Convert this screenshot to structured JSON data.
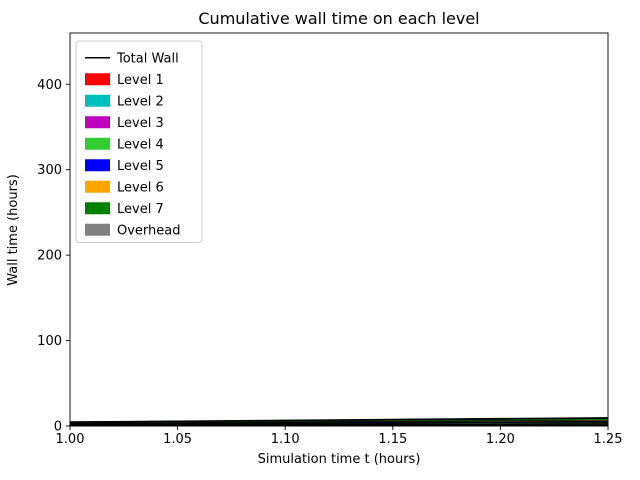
{
  "chart_data": {
    "type": "area",
    "title": "Cumulative wall time on each level",
    "xlabel": "Simulation time t (hours)",
    "ylabel": "Wall time (hours)",
    "xlim": [
      1.0,
      1.25
    ],
    "ylim": [
      0,
      460
    ],
    "grid": false,
    "legend_position": "upper left",
    "xticks": {
      "values": [
        1.0,
        1.05,
        1.1,
        1.15,
        1.2,
        1.25
      ],
      "labels": [
        "1.00",
        "1.05",
        "1.10",
        "1.15",
        "1.20",
        "1.25"
      ]
    },
    "yticks": {
      "values": [
        0,
        100,
        200,
        300,
        400
      ],
      "labels": [
        "0",
        "100",
        "200",
        "300",
        "400"
      ]
    },
    "x": [
      1.0,
      1.05,
      1.1,
      1.15,
      1.2,
      1.25
    ],
    "total_line": {
      "label": "Total Wall",
      "color": "#000000",
      "values": [
        4.8,
        5.75,
        6.8,
        7.8,
        8.8,
        9.7
      ]
    },
    "series": [
      {
        "name": "Level 1",
        "color": "#ff0000",
        "values": [
          0.6,
          0.7,
          0.8,
          0.9,
          1.0,
          1.1
        ]
      },
      {
        "name": "Level 2",
        "color": "#00bfbf",
        "values": [
          0.5,
          0.6,
          0.7,
          0.8,
          0.9,
          1.0
        ]
      },
      {
        "name": "Level 3",
        "color": "#bf00bf",
        "values": [
          0.5,
          0.6,
          0.7,
          0.8,
          0.9,
          1.0
        ]
      },
      {
        "name": "Level 4",
        "color": "#32cd32",
        "values": [
          0.6,
          0.75,
          0.9,
          1.0,
          1.2,
          1.3
        ]
      },
      {
        "name": "Level 5",
        "color": "#0000ff",
        "values": [
          0.6,
          0.7,
          0.85,
          1.0,
          1.1,
          1.2
        ]
      },
      {
        "name": "Level 6",
        "color": "#ffa500",
        "values": [
          0.6,
          0.7,
          0.85,
          1.0,
          1.1,
          1.2
        ]
      },
      {
        "name": "Level 7",
        "color": "#008000",
        "values": [
          0.9,
          1.1,
          1.3,
          1.5,
          1.7,
          1.9
        ]
      },
      {
        "name": "Overhead",
        "color": "#808080",
        "values": [
          0.5,
          0.6,
          0.7,
          0.8,
          0.9,
          1.0
        ]
      }
    ]
  }
}
